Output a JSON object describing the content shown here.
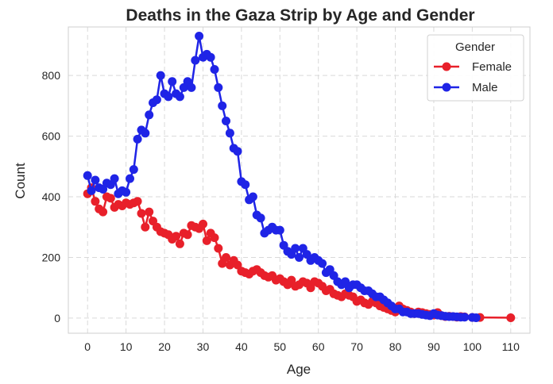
{
  "chart_data": {
    "type": "line",
    "title": "Deaths in the Gaza Strip by Age and Gender",
    "xlabel": "Age",
    "ylabel": "Count",
    "xlim": [
      -5,
      115
    ],
    "ylim": [
      -50,
      960
    ],
    "xticks": [
      0,
      10,
      20,
      30,
      40,
      50,
      60,
      70,
      80,
      90,
      100,
      110
    ],
    "yticks": [
      0,
      200,
      400,
      600,
      800
    ],
    "grid": true,
    "legend": {
      "title": "Gender",
      "placement": "top-right"
    },
    "series": [
      {
        "name": "Female",
        "color": "#e8202a",
        "x": [
          0,
          1,
          2,
          3,
          4,
          5,
          6,
          7,
          8,
          9,
          10,
          11,
          12,
          13,
          14,
          15,
          16,
          17,
          18,
          19,
          20,
          21,
          22,
          23,
          24,
          25,
          26,
          27,
          28,
          29,
          30,
          31,
          32,
          33,
          34,
          35,
          36,
          37,
          38,
          39,
          40,
          41,
          42,
          43,
          44,
          45,
          46,
          47,
          48,
          49,
          50,
          51,
          52,
          53,
          54,
          55,
          56,
          57,
          58,
          59,
          60,
          61,
          62,
          63,
          64,
          65,
          66,
          67,
          68,
          69,
          70,
          71,
          72,
          73,
          74,
          75,
          76,
          77,
          78,
          79,
          80,
          81,
          82,
          83,
          84,
          85,
          86,
          87,
          88,
          89,
          90,
          91,
          92,
          93,
          94,
          95,
          96,
          97,
          98,
          100,
          102,
          110
        ],
        "y": [
          410,
          430,
          385,
          360,
          350,
          400,
          395,
          365,
          375,
          370,
          380,
          375,
          380,
          385,
          345,
          300,
          350,
          320,
          300,
          285,
          280,
          275,
          260,
          270,
          245,
          280,
          275,
          305,
          300,
          295,
          310,
          255,
          280,
          265,
          230,
          180,
          200,
          175,
          190,
          175,
          155,
          150,
          145,
          155,
          160,
          150,
          140,
          135,
          140,
          125,
          130,
          120,
          110,
          125,
          105,
          110,
          120,
          115,
          100,
          120,
          115,
          105,
          90,
          95,
          80,
          75,
          70,
          80,
          75,
          70,
          55,
          60,
          50,
          45,
          55,
          50,
          40,
          35,
          30,
          25,
          20,
          40,
          30,
          25,
          20,
          15,
          20,
          18,
          15,
          12,
          10,
          18,
          8,
          5,
          6,
          5,
          3,
          5,
          4,
          2,
          2,
          1
        ]
      },
      {
        "name": "Male",
        "color": "#1f24e6",
        "x": [
          0,
          1,
          2,
          3,
          4,
          5,
          6,
          7,
          8,
          9,
          10,
          11,
          12,
          13,
          14,
          15,
          16,
          17,
          18,
          19,
          20,
          21,
          22,
          23,
          24,
          25,
          26,
          27,
          28,
          29,
          30,
          31,
          32,
          33,
          34,
          35,
          36,
          37,
          38,
          39,
          40,
          41,
          42,
          43,
          44,
          45,
          46,
          47,
          48,
          49,
          50,
          51,
          52,
          53,
          54,
          55,
          56,
          57,
          58,
          59,
          60,
          61,
          62,
          63,
          64,
          65,
          66,
          67,
          68,
          69,
          70,
          71,
          72,
          73,
          74,
          75,
          76,
          77,
          78,
          79,
          80,
          81,
          82,
          83,
          84,
          85,
          86,
          87,
          88,
          89,
          90,
          91,
          92,
          93,
          94,
          95,
          96,
          97,
          98,
          100,
          101
        ],
        "y": [
          470,
          420,
          455,
          430,
          425,
          445,
          440,
          460,
          410,
          420,
          415,
          460,
          490,
          590,
          620,
          610,
          670,
          710,
          720,
          800,
          740,
          730,
          780,
          740,
          730,
          760,
          780,
          760,
          850,
          930,
          860,
          870,
          860,
          820,
          760,
          700,
          650,
          610,
          560,
          550,
          450,
          440,
          390,
          400,
          340,
          330,
          280,
          290,
          300,
          290,
          290,
          240,
          220,
          210,
          230,
          200,
          230,
          210,
          190,
          200,
          190,
          180,
          150,
          160,
          140,
          120,
          110,
          120,
          100,
          110,
          110,
          100,
          90,
          90,
          80,
          70,
          70,
          60,
          50,
          40,
          30,
          30,
          20,
          20,
          15,
          15,
          15,
          12,
          10,
          8,
          15,
          10,
          8,
          6,
          5,
          5,
          4,
          3,
          3,
          2,
          1
        ]
      }
    ]
  }
}
